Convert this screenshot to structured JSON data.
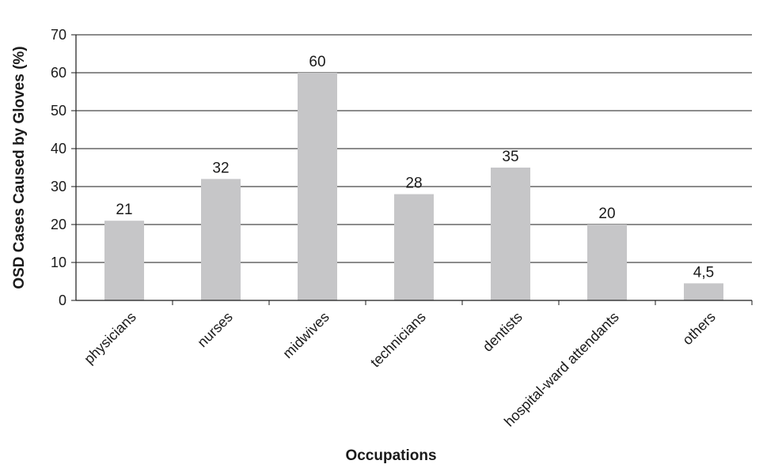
{
  "chart_data": {
    "type": "bar",
    "categories": [
      "physicians",
      "nurses",
      "midwives",
      "technicians",
      "dentists",
      "hospital-ward attendants",
      "others"
    ],
    "values": [
      21,
      32,
      60,
      28,
      35,
      20,
      4.5
    ],
    "data_labels": [
      "21",
      "32",
      "60",
      "28",
      "35",
      "20",
      "4,5"
    ],
    "xlabel": "Occupations",
    "ylabel": "OSD Cases Caused by Gloves (%)",
    "ylim": [
      0,
      70
    ],
    "yticks": [
      0,
      10,
      20,
      30,
      40,
      50,
      60,
      70
    ],
    "grid": true,
    "legend": "none",
    "colors": {
      "bar": "#c6c6c8",
      "grid": "#1a1a1a",
      "axis": "#1a1a1a"
    }
  }
}
